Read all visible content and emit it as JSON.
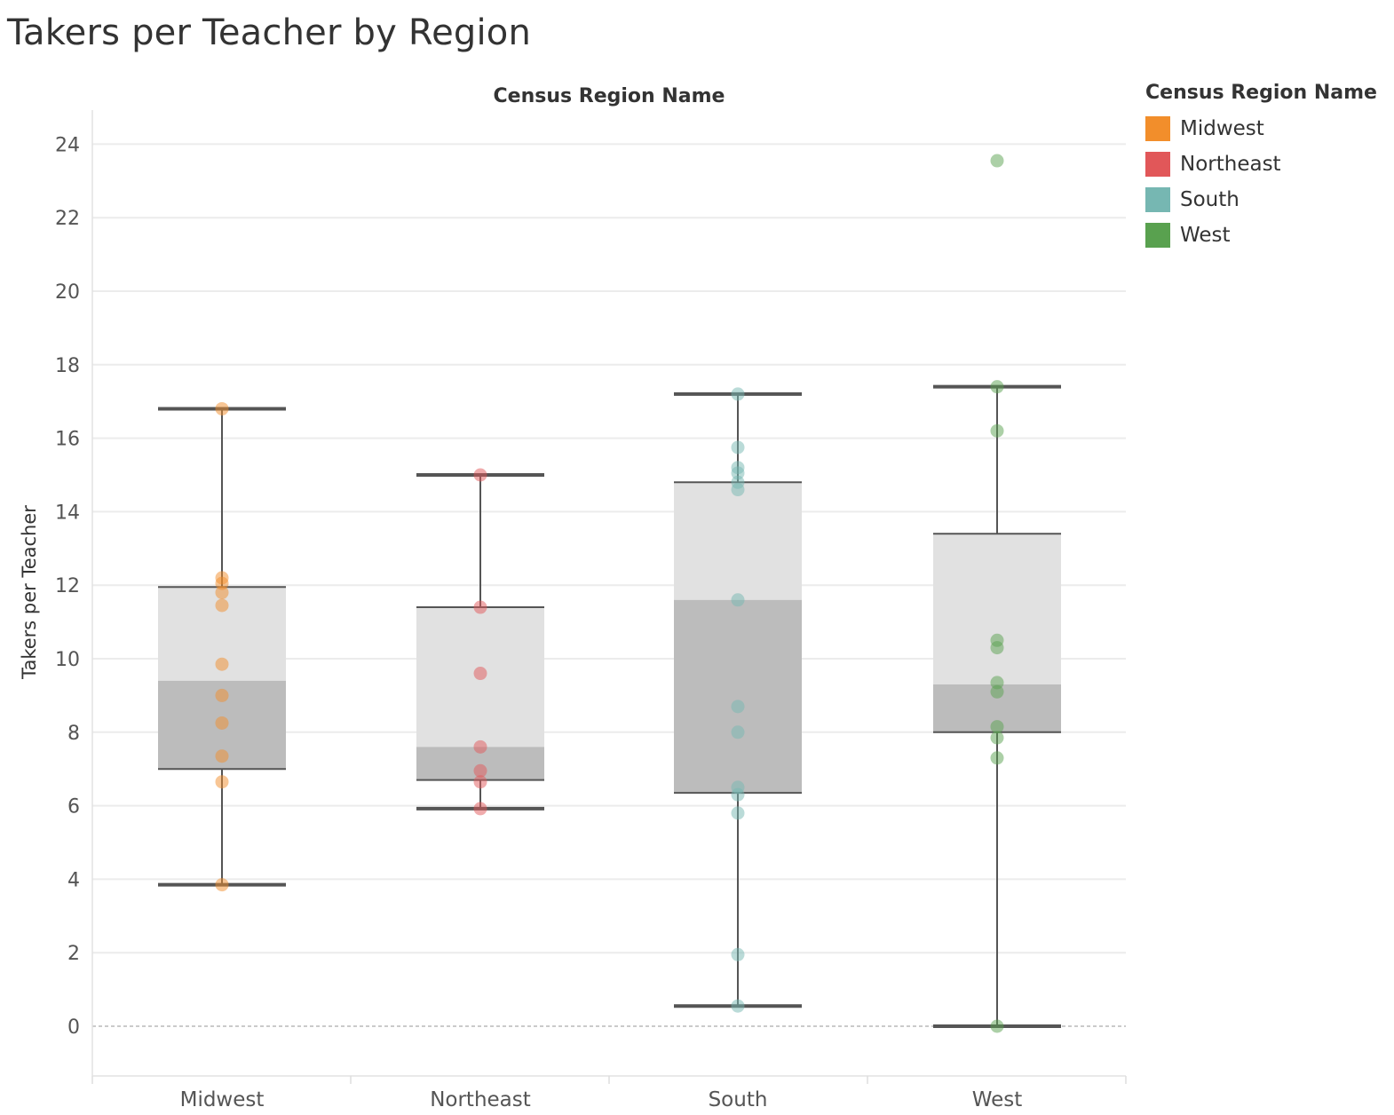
{
  "title": "Takers per Teacher by Region",
  "colors": {
    "Midwest": "#f28e2b",
    "Northeast": "#e15759",
    "South": "#76b7b2",
    "West": "#59a14f"
  },
  "legend": {
    "title": "Census Region Name",
    "items": [
      {
        "label": "Midwest",
        "color": "#f28e2b"
      },
      {
        "label": "Northeast",
        "color": "#e15759"
      },
      {
        "label": "South",
        "color": "#76b7b2"
      },
      {
        "label": "West",
        "color": "#59a14f"
      }
    ]
  },
  "chart_data": {
    "type": "box-plot",
    "title": "Takers per Teacher by Region",
    "column_header": "Census Region Name",
    "xlabel": "",
    "ylabel": "Takers per Teacher",
    "ylim": [
      -1.4,
      24.9
    ],
    "yticks": [
      0,
      2,
      4,
      6,
      8,
      10,
      12,
      14,
      16,
      18,
      20,
      22,
      24
    ],
    "grid": true,
    "legend_position": "right",
    "categories": [
      "Midwest",
      "Northeast",
      "South",
      "West"
    ],
    "boxes": [
      {
        "category": "Midwest",
        "lower_whisker": 3.85,
        "q1": 7.0,
        "median": 9.4,
        "q3": 11.95,
        "upper_whisker": 16.8
      },
      {
        "category": "Northeast",
        "lower_whisker": 5.92,
        "q1": 6.7,
        "median": 7.6,
        "q3": 11.4,
        "upper_whisker": 15.0
      },
      {
        "category": "South",
        "lower_whisker": 0.55,
        "q1": 6.35,
        "median": 11.6,
        "q3": 14.8,
        "upper_whisker": 17.2
      },
      {
        "category": "West",
        "lower_whisker": 0.0,
        "q1": 8.0,
        "median": 9.3,
        "q3": 13.4,
        "upper_whisker": 17.4
      }
    ],
    "points": {
      "Midwest": [
        16.8,
        12.2,
        12.05,
        11.8,
        11.45,
        9.85,
        9.0,
        8.25,
        7.35,
        6.65,
        3.85
      ],
      "Northeast": [
        15.0,
        11.4,
        9.6,
        7.6,
        6.95,
        6.65,
        5.92
      ],
      "South": [
        17.2,
        15.75,
        15.2,
        15.05,
        14.8,
        14.6,
        11.6,
        8.7,
        8.0,
        6.5,
        6.3,
        5.8,
        1.95,
        0.55
      ],
      "West": [
        23.55,
        17.4,
        16.2,
        10.5,
        10.3,
        9.35,
        9.1,
        8.15,
        7.85,
        7.3,
        0.0
      ]
    }
  }
}
